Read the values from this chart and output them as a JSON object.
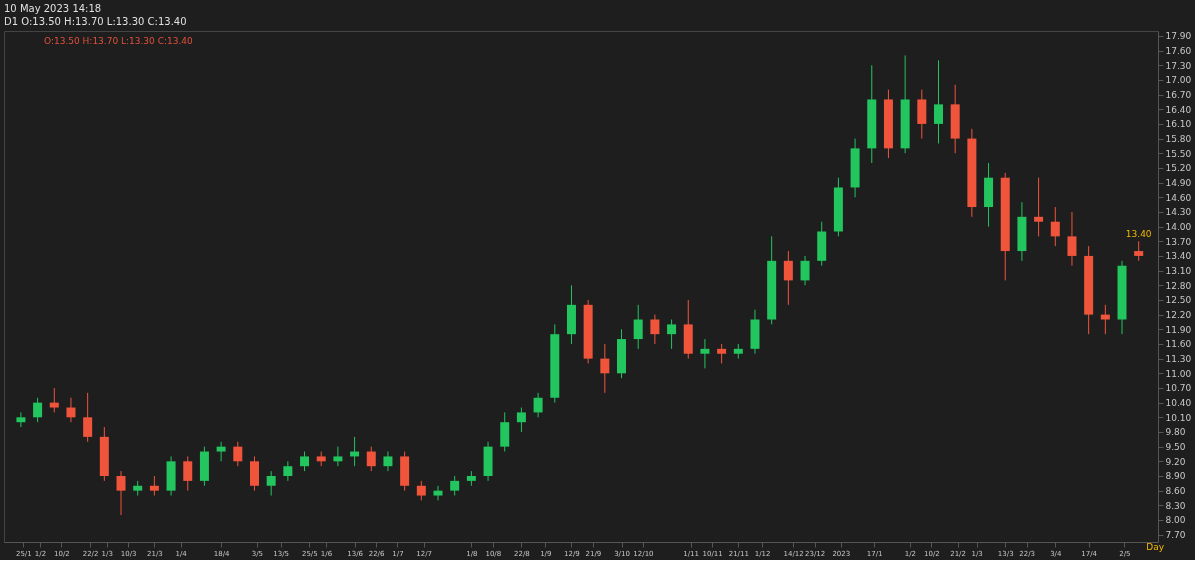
{
  "chart_data": {
    "type": "candlestick",
    "title": "10 May 2023 14:18",
    "subtitle": "D1 O:13.50 H:13.70 L:13.30 C:13.40",
    "annotations": [
      "O:13.50 H:13.70 L:13.30 C:13.40",
      "Day",
      {
        "text": "13.40",
        "x": "2023-05-08",
        "y": 13.4
      }
    ],
    "x": [
      "2022-01-24",
      "2022-01-31",
      "2022-02-07",
      "2022-02-14",
      "2022-02-21",
      "2022-02-28",
      "2022-03-07",
      "2022-03-14",
      "2022-03-21",
      "2022-03-28",
      "2022-04-04",
      "2022-04-11",
      "2022-04-18",
      "2022-04-25",
      "2022-05-02",
      "2022-05-09",
      "2022-05-16",
      "2022-05-23",
      "2022-05-30",
      "2022-06-06",
      "2022-06-13",
      "2022-06-20",
      "2022-06-27",
      "2022-07-04",
      "2022-07-11",
      "2022-07-18",
      "2022-07-25",
      "2022-08-01",
      "2022-08-08",
      "2022-08-15",
      "2022-08-22",
      "2022-08-29",
      "2022-09-05",
      "2022-09-12",
      "2022-09-19",
      "2022-09-26",
      "2022-10-03",
      "2022-10-10",
      "2022-10-17",
      "2022-10-24",
      "2022-10-31",
      "2022-11-07",
      "2022-11-14",
      "2022-11-21",
      "2022-11-28",
      "2022-12-05",
      "2022-12-12",
      "2022-12-19",
      "2022-12-26",
      "2023-01-02",
      "2023-01-09",
      "2023-01-16",
      "2023-01-23",
      "2023-01-30",
      "2023-02-06",
      "2023-02-13",
      "2023-02-20",
      "2023-02-27",
      "2023-03-06",
      "2023-03-13",
      "2023-03-20",
      "2023-03-27",
      "2023-04-03",
      "2023-04-10",
      "2023-04-17",
      "2023-04-24",
      "2023-05-01",
      "2023-05-08"
    ],
    "ohlc": [
      [
        10.0,
        10.2,
        9.9,
        10.1
      ],
      [
        10.1,
        10.5,
        10.0,
        10.4
      ],
      [
        10.4,
        10.7,
        10.2,
        10.3
      ],
      [
        10.3,
        10.5,
        10.0,
        10.1
      ],
      [
        10.1,
        10.6,
        9.6,
        9.7
      ],
      [
        9.7,
        9.9,
        8.8,
        8.9
      ],
      [
        8.9,
        9.0,
        8.1,
        8.6
      ],
      [
        8.6,
        8.8,
        8.5,
        8.7
      ],
      [
        8.7,
        8.9,
        8.5,
        8.6
      ],
      [
        8.6,
        9.3,
        8.5,
        9.2
      ],
      [
        9.2,
        9.3,
        8.6,
        8.8
      ],
      [
        8.8,
        9.5,
        8.7,
        9.4
      ],
      [
        9.4,
        9.6,
        9.2,
        9.5
      ],
      [
        9.5,
        9.6,
        9.1,
        9.2
      ],
      [
        9.2,
        9.3,
        8.6,
        8.7
      ],
      [
        8.7,
        9.0,
        8.5,
        8.9
      ],
      [
        8.9,
        9.2,
        8.8,
        9.1
      ],
      [
        9.1,
        9.4,
        9.0,
        9.3
      ],
      [
        9.3,
        9.4,
        9.1,
        9.2
      ],
      [
        9.2,
        9.5,
        9.1,
        9.3
      ],
      [
        9.3,
        9.7,
        9.1,
        9.4
      ],
      [
        9.4,
        9.5,
        9.0,
        9.1
      ],
      [
        9.1,
        9.4,
        9.0,
        9.3
      ],
      [
        9.3,
        9.4,
        8.6,
        8.7
      ],
      [
        8.7,
        8.8,
        8.4,
        8.5
      ],
      [
        8.5,
        8.7,
        8.4,
        8.6
      ],
      [
        8.6,
        8.9,
        8.5,
        8.8
      ],
      [
        8.8,
        9.0,
        8.7,
        8.9
      ],
      [
        8.9,
        9.6,
        8.8,
        9.5
      ],
      [
        9.5,
        10.2,
        9.4,
        10.0
      ],
      [
        10.0,
        10.3,
        9.8,
        10.2
      ],
      [
        10.2,
        10.6,
        10.1,
        10.5
      ],
      [
        10.5,
        12.0,
        10.4,
        11.8
      ],
      [
        11.8,
        12.8,
        11.6,
        12.4
      ],
      [
        12.4,
        12.5,
        11.2,
        11.3
      ],
      [
        11.3,
        11.6,
        10.6,
        11.0
      ],
      [
        11.0,
        11.9,
        10.9,
        11.7
      ],
      [
        11.7,
        12.4,
        11.5,
        12.1
      ],
      [
        12.1,
        12.2,
        11.6,
        11.8
      ],
      [
        11.8,
        12.1,
        11.5,
        12.0
      ],
      [
        12.0,
        12.5,
        11.3,
        11.4
      ],
      [
        11.4,
        11.7,
        11.1,
        11.5
      ],
      [
        11.5,
        11.6,
        11.2,
        11.4
      ],
      [
        11.4,
        11.6,
        11.3,
        11.5
      ],
      [
        11.5,
        12.3,
        11.4,
        12.1
      ],
      [
        12.1,
        13.8,
        12.0,
        13.3
      ],
      [
        13.3,
        13.5,
        12.4,
        12.9
      ],
      [
        12.9,
        13.4,
        12.8,
        13.3
      ],
      [
        13.3,
        14.1,
        13.2,
        13.9
      ],
      [
        13.9,
        15.0,
        13.8,
        14.8
      ],
      [
        14.8,
        15.8,
        14.6,
        15.6
      ],
      [
        15.6,
        17.3,
        15.3,
        16.6
      ],
      [
        16.6,
        16.8,
        15.4,
        15.6
      ],
      [
        15.6,
        17.5,
        15.5,
        16.6
      ],
      [
        16.6,
        16.8,
        15.8,
        16.1
      ],
      [
        16.1,
        17.4,
        15.7,
        16.5
      ],
      [
        16.5,
        16.9,
        15.5,
        15.8
      ],
      [
        15.8,
        16.0,
        14.2,
        14.4
      ],
      [
        14.4,
        15.3,
        14.0,
        15.0
      ],
      [
        15.0,
        15.1,
        12.9,
        13.5
      ],
      [
        13.5,
        14.5,
        13.3,
        14.2
      ],
      [
        14.2,
        15.0,
        13.8,
        14.1
      ],
      [
        14.1,
        14.4,
        13.6,
        13.8
      ],
      [
        13.8,
        14.3,
        13.2,
        13.4
      ],
      [
        13.4,
        13.6,
        11.8,
        12.2
      ],
      [
        12.2,
        12.4,
        11.8,
        12.1
      ],
      [
        12.1,
        13.3,
        11.8,
        13.2
      ],
      [
        13.5,
        13.7,
        13.3,
        13.4
      ]
    ],
    "colors": [
      "#22c55e",
      "#22c55e",
      "#f0553c",
      "#f0553c",
      "#f0553c",
      "#f0553c",
      "#f0553c",
      "#22c55e",
      "#f0553c",
      "#22c55e",
      "#f0553c",
      "#22c55e",
      "#22c55e",
      "#f0553c",
      "#f0553c",
      "#22c55e",
      "#22c55e",
      "#22c55e",
      "#f0553c",
      "#22c55e",
      "#22c55e",
      "#f0553c",
      "#22c55e",
      "#f0553c",
      "#f0553c",
      "#22c55e",
      "#22c55e",
      "#22c55e",
      "#22c55e",
      "#22c55e",
      "#22c55e",
      "#22c55e",
      "#22c55e",
      "#22c55e",
      "#f0553c",
      "#f0553c",
      "#22c55e",
      "#22c55e",
      "#f0553c",
      "#22c55e",
      "#f0553c",
      "#22c55e",
      "#f0553c",
      "#22c55e",
      "#22c55e",
      "#22c55e",
      "#f0553c",
      "#22c55e",
      "#22c55e",
      "#22c55e",
      "#22c55e",
      "#22c55e",
      "#f0553c",
      "#22c55e",
      "#f0553c",
      "#22c55e",
      "#f0553c",
      "#f0553c",
      "#22c55e",
      "#f0553c",
      "#22c55e",
      "#f0553c",
      "#f0553c",
      "#f0553c",
      "#f0553c",
      "#f0553c",
      "#22c55e",
      "#f0553c"
    ],
    "xlim": [
      "2022-01-19",
      "2023-05-14"
    ],
    "xticks": [
      {
        "value": "2022-01-25",
        "label": "25/1"
      },
      {
        "value": "2022-02-01",
        "label": "1/2"
      },
      {
        "value": "2022-02-10",
        "label": "10/2"
      },
      {
        "value": "2022-02-22",
        "label": "22/2"
      },
      {
        "value": "2022-03-01",
        "label": "1/3"
      },
      {
        "value": "2022-03-10",
        "label": "10/3"
      },
      {
        "value": "2022-03-21",
        "label": "21/3"
      },
      {
        "value": "2022-04-01",
        "label": "1/4"
      },
      {
        "value": "2022-04-18",
        "label": "18/4"
      },
      {
        "value": "2022-05-03",
        "label": "3/5"
      },
      {
        "value": "2022-05-13",
        "label": "13/5"
      },
      {
        "value": "2022-05-25",
        "label": "25/5"
      },
      {
        "value": "2022-06-01",
        "label": "1/6"
      },
      {
        "value": "2022-06-13",
        "label": "13/6"
      },
      {
        "value": "2022-06-22",
        "label": "22/6"
      },
      {
        "value": "2022-07-01",
        "label": "1/7"
      },
      {
        "value": "2022-07-12",
        "label": "12/7"
      },
      {
        "value": "2022-08-01",
        "label": "1/8"
      },
      {
        "value": "2022-08-10",
        "label": "10/8"
      },
      {
        "value": "2022-08-22",
        "label": "22/8"
      },
      {
        "value": "2022-09-01",
        "label": "1/9"
      },
      {
        "value": "2022-09-12",
        "label": "12/9"
      },
      {
        "value": "2022-09-21",
        "label": "21/9"
      },
      {
        "value": "2022-10-03",
        "label": "3/10"
      },
      {
        "value": "2022-10-12",
        "label": "12/10"
      },
      {
        "value": "2022-11-01",
        "label": "1/11"
      },
      {
        "value": "2022-11-10",
        "label": "10/11"
      },
      {
        "value": "2022-11-21",
        "label": "21/11"
      },
      {
        "value": "2022-12-01",
        "label": "1/12"
      },
      {
        "value": "2022-12-14",
        "label": "14/12"
      },
      {
        "value": "2022-12-23",
        "label": "23/12"
      },
      {
        "value": "2023-01-03",
        "label": "2023"
      },
      {
        "value": "2023-01-17",
        "label": "17/1"
      },
      {
        "value": "2023-02-01",
        "label": "1/2"
      },
      {
        "value": "2023-02-10",
        "label": "10/2"
      },
      {
        "value": "2023-02-21",
        "label": "21/2"
      },
      {
        "value": "2023-03-01",
        "label": "1/3"
      },
      {
        "value": "2023-03-13",
        "label": "13/3"
      },
      {
        "value": "2023-03-22",
        "label": "22/3"
      },
      {
        "value": "2023-04-03",
        "label": "3/4"
      },
      {
        "value": "2023-04-17",
        "label": "17/4"
      },
      {
        "value": "2023-05-02",
        "label": "2/5"
      }
    ],
    "ylim": [
      7.55,
      18.0
    ],
    "yticks": [
      {
        "value": 7.7,
        "label": "7.70"
      },
      {
        "value": 8.0,
        "label": "8.00"
      },
      {
        "value": 8.3,
        "label": "8.30"
      },
      {
        "value": 8.6,
        "label": "8.60"
      },
      {
        "value": 8.9,
        "label": "8.90"
      },
      {
        "value": 9.2,
        "label": "9.20"
      },
      {
        "value": 9.5,
        "label": "9.50"
      },
      {
        "value": 9.8,
        "label": "9.80"
      },
      {
        "value": 10.1,
        "label": "10.10"
      },
      {
        "value": 10.4,
        "label": "10.40"
      },
      {
        "value": 10.7,
        "label": "10.70"
      },
      {
        "value": 11.0,
        "label": "11.00"
      },
      {
        "value": 11.3,
        "label": "11.30"
      },
      {
        "value": 11.6,
        "label": "11.60"
      },
      {
        "value": 11.9,
        "label": "11.90"
      },
      {
        "value": 12.2,
        "label": "12.20"
      },
      {
        "value": 12.5,
        "label": "12.50"
      },
      {
        "value": 12.8,
        "label": "12.80"
      },
      {
        "value": 13.1,
        "label": "13.10"
      },
      {
        "value": 13.4,
        "label": "13.40"
      },
      {
        "value": 13.7,
        "label": "13.70"
      },
      {
        "value": 14.0,
        "label": "14.00"
      },
      {
        "value": 14.3,
        "label": "14.30"
      },
      {
        "value": 14.6,
        "label": "14.60"
      },
      {
        "value": 14.9,
        "label": "14.90"
      },
      {
        "value": 15.2,
        "label": "15.20"
      },
      {
        "value": 15.5,
        "label": "15.50"
      },
      {
        "value": 15.8,
        "label": "15.80"
      },
      {
        "value": 16.1,
        "label": "16.10"
      },
      {
        "value": 16.4,
        "label": "16.40"
      },
      {
        "value": 16.7,
        "label": "16.70"
      },
      {
        "value": 17.0,
        "label": "17.00"
      },
      {
        "value": 17.3,
        "label": "17.30"
      },
      {
        "value": 17.6,
        "label": "17.60"
      },
      {
        "value": 17.9,
        "label": "17.90"
      }
    ],
    "grid": false
  }
}
